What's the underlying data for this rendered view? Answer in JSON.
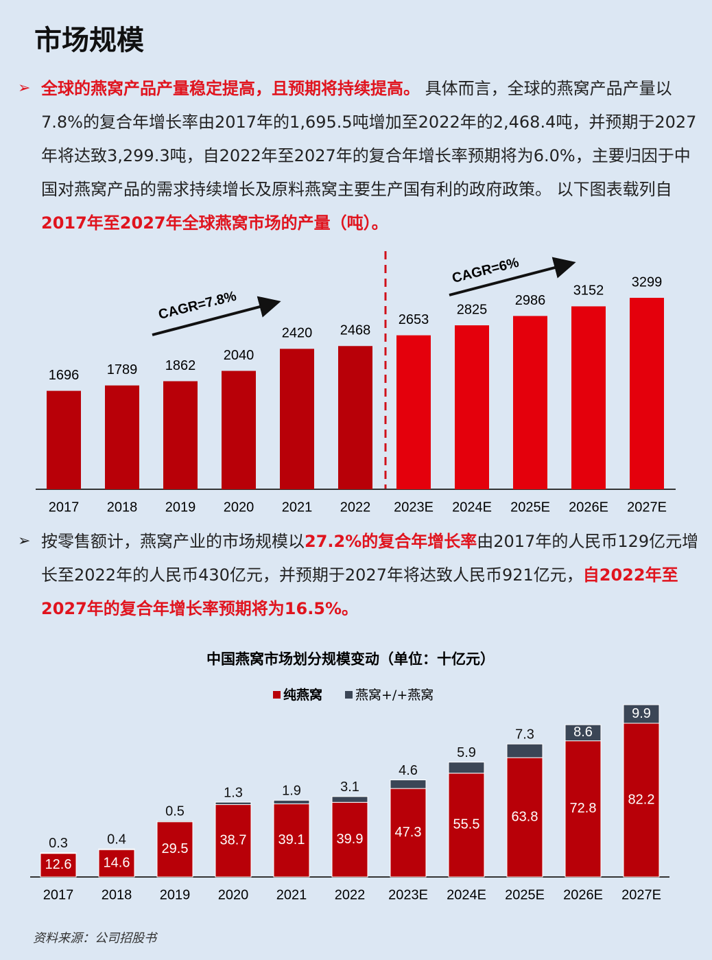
{
  "title": "市场规模",
  "paragraphs": [
    {
      "runs": [
        {
          "text": "全球的燕窝产品产量稳定提高，且预期将持续提高。",
          "emphasis": true
        },
        {
          "text": " 具体而言，全球的燕窝产品产量以7.8%的复合年增长率由2017年的1,695.5吨增加至2022年的2,468.4吨，并预期于2027年将达致3,299.3吨，自2022年至2027年的复合年增长率预期将为6.0%，主要归因于中国对燕窝产品的需求持续增长及原料燕窝主要生产国有利的政府政策。 以下图表载列自",
          "emphasis": false
        },
        {
          "text": "2017年至2027年全球燕窝市场的产量（吨）。",
          "emphasis": true
        }
      ]
    },
    {
      "runs": [
        {
          "text": "按零售额计，燕窝产业的市场规模以",
          "emphasis": false
        },
        {
          "text": "27.2%的复合年增长率",
          "emphasis": true
        },
        {
          "text": "由2017年的人民币129亿元增长至2022年的人民币430亿元，并预期于2027年将达致人民币921亿元，",
          "emphasis": false
        },
        {
          "text": "自2022年至2027年的复合年增长率预期将为16.5%。",
          "emphasis": true
        }
      ]
    }
  ],
  "chart_data": [
    {
      "type": "bar",
      "categories": [
        "2017",
        "2018",
        "2019",
        "2020",
        "2021",
        "2022",
        "2023E",
        "2024E",
        "2025E",
        "2026E",
        "2027E"
      ],
      "values": [
        1696,
        1789,
        1862,
        2040,
        2420,
        2468,
        2653,
        2825,
        2986,
        3152,
        3299
      ],
      "colors": [
        "#b80008",
        "#b80008",
        "#b80008",
        "#b80008",
        "#b80008",
        "#b80008",
        "#e4000c",
        "#e4000c",
        "#e4000c",
        "#e4000c",
        "#e4000c"
      ],
      "annotations": [
        "CAGR=7.8%",
        "CAGR=6%"
      ]
    },
    {
      "type": "stacked-bar",
      "title": "中国燕窝市场划分规模变动（单位：十亿元）",
      "categories": [
        "2017",
        "2018",
        "2019",
        "2020",
        "2021",
        "2022",
        "2023E",
        "2024E",
        "2025E",
        "2026E",
        "2027E"
      ],
      "series": [
        {
          "name": "纯燕窝",
          "color": "#b80008",
          "values": [
            12.6,
            14.6,
            29.5,
            38.7,
            39.1,
            39.9,
            47.3,
            55.5,
            63.8,
            72.8,
            82.2
          ]
        },
        {
          "name": "燕窝+/+燕窝",
          "color": "#3b4656",
          "values": [
            0.3,
            0.4,
            0.5,
            1.3,
            1.9,
            3.1,
            4.6,
            5.9,
            7.3,
            8.6,
            9.9
          ]
        }
      ]
    }
  ],
  "source": "资料来源：公司招股书"
}
